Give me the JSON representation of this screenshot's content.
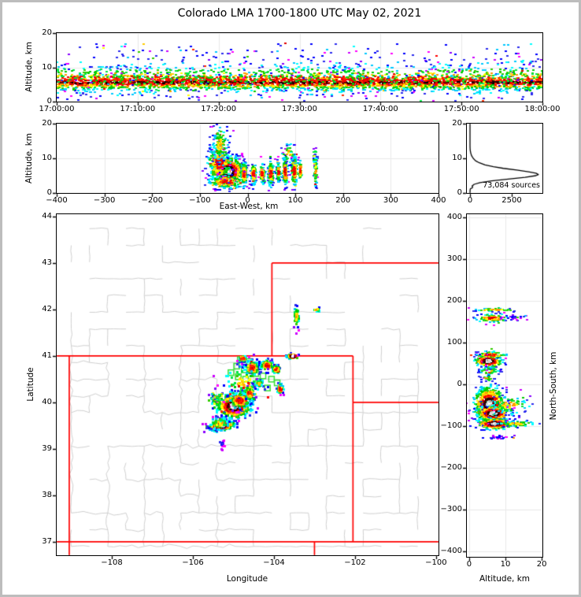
{
  "title": "Colorado LMA 1700-1800 UTC May 02, 2021",
  "style": {
    "figure_border_color": "#bdbdbd",
    "frame_color": "#000000",
    "grid_color": "#e9e9e9",
    "county_line_color": "#cfcfcf",
    "state_border_color": "#ff0000",
    "station_marker_color": "#35e035",
    "histogram_line_color": "#000000",
    "density_tiers": [
      [
        "#ffffff",
        "#d4d4d4",
        "#9e9e9e"
      ],
      [
        "#000000",
        "#2b0000",
        "#660000"
      ],
      [
        "#ff0000",
        "#e00000",
        "#ff2a00"
      ],
      [
        "#ff9900",
        "#ffcc00",
        "#ffff00"
      ],
      [
        "#00cc00",
        "#00e644",
        "#33cc00"
      ],
      [
        "#00ffff",
        "#00c8ff"
      ],
      [
        "#0000ff",
        "#2b2bee"
      ],
      [
        "#8800ff",
        "#cc00ff",
        "#ff00ff"
      ]
    ]
  },
  "chart_data": [
    {
      "id": "time",
      "type": "scatter-density",
      "description": "Time-height lightning source scatter",
      "xlabel": "",
      "ylabel": "Altitude, km",
      "xlim": [
        0,
        3600
      ],
      "ylim": [
        0,
        20
      ],
      "xticks": [
        {
          "v": 0,
          "label": "17:00:00"
        },
        {
          "v": 600,
          "label": "17:10:00"
        },
        {
          "v": 1200,
          "label": "17:20:00"
        },
        {
          "v": 1800,
          "label": "17:30:00"
        },
        {
          "v": 2400,
          "label": "17:40:00"
        },
        {
          "v": 3000,
          "label": "17:50:00"
        },
        {
          "v": 3600,
          "label": "18:00:00"
        }
      ],
      "yticks": [
        {
          "v": 0,
          "label": "0"
        },
        {
          "v": 10,
          "label": "10"
        },
        {
          "v": 20,
          "label": "20"
        }
      ],
      "grid": true,
      "clusters": [
        {
          "band": true,
          "n": 2400,
          "x0": 0,
          "x1": 3600,
          "cy": 5.6,
          "sy": 1.0,
          "kind": "band"
        },
        {
          "band": true,
          "n": 1100,
          "x0": 0,
          "x1": 3600,
          "cy": 6.3,
          "sy": 2.0,
          "kind": "mid"
        },
        {
          "band": true,
          "n": 700,
          "x0": 0,
          "x1": 3600,
          "cy": 6.8,
          "sy": 3.2,
          "kind": "outer"
        },
        {
          "uniform": true,
          "n": 130,
          "x0": 60,
          "x1": 3560,
          "y0": 9,
          "y1": 17,
          "kind": "highblue"
        }
      ]
    },
    {
      "id": "ew",
      "type": "scatter-density",
      "description": "East-West vertical cross section",
      "xlabel": "East-West, km",
      "ylabel": "Altitude, km",
      "xlim": [
        -400,
        400
      ],
      "ylim": [
        0,
        20
      ],
      "xticks": [
        {
          "v": -400,
          "label": "−400"
        },
        {
          "v": -300,
          "label": "−300"
        },
        {
          "v": -200,
          "label": "−200"
        },
        {
          "v": -100,
          "label": "−100"
        },
        {
          "v": 0,
          "label": "0"
        },
        {
          "v": 100,
          "label": "100"
        },
        {
          "v": 200,
          "label": "200"
        },
        {
          "v": 300,
          "label": "300"
        },
        {
          "v": 400,
          "label": "400"
        }
      ],
      "yticks": [
        {
          "v": 0,
          "label": "0"
        },
        {
          "v": 10,
          "label": "10"
        },
        {
          "v": 20,
          "label": "20"
        }
      ],
      "grid": true,
      "clusters": [
        {
          "n": 800,
          "cx": -42,
          "cy": 6.2,
          "sx": 16,
          "sy": 2.0,
          "kind": "dense"
        },
        {
          "n": 250,
          "cx": -60,
          "cy": 8.5,
          "sx": 12,
          "sy": 2.5,
          "kind": "mid"
        },
        {
          "n": 160,
          "cx": -45,
          "cy": 3.2,
          "sx": 18,
          "sy": 0.9,
          "kind": "mid"
        },
        {
          "n": 140,
          "cx": -58,
          "cy": 14.0,
          "sx": 9,
          "sy": 2.8,
          "kind": "sparse"
        },
        {
          "n": 120,
          "cx": -8,
          "cy": 5.5,
          "sx": 3.0,
          "sy": 1.8,
          "kind": "colmid"
        },
        {
          "n": 100,
          "cx": 12,
          "cy": 5.5,
          "sx": 2.5,
          "sy": 1.6,
          "kind": "colmid"
        },
        {
          "n": 90,
          "cx": 30,
          "cy": 5.5,
          "sx": 2.5,
          "sy": 1.5,
          "kind": "colmid"
        },
        {
          "n": 130,
          "cx": 48,
          "cy": 5.5,
          "sx": 3.0,
          "sy": 1.8,
          "kind": "colmid"
        },
        {
          "n": 70,
          "cx": 64,
          "cy": 6.0,
          "sx": 2.0,
          "sy": 1.5,
          "kind": "colmid"
        },
        {
          "n": 120,
          "cx": 78,
          "cy": 6.0,
          "sx": 2.5,
          "sy": 2.0,
          "kind": "colmid"
        },
        {
          "n": 140,
          "cx": 97,
          "cy": 6.5,
          "sx": 3.0,
          "sy": 2.2,
          "kind": "colmid"
        },
        {
          "n": 50,
          "cx": 110,
          "cy": 6.5,
          "sx": 1.5,
          "sy": 1.5,
          "kind": "colmid"
        },
        {
          "n": 70,
          "cx": 142,
          "cy": 6.5,
          "sx": 2.0,
          "sy": 2.4,
          "kind": "sparse"
        },
        {
          "n": 40,
          "cx": 85,
          "cy": 11.5,
          "sx": 8.0,
          "sy": 1.5,
          "kind": "sparse"
        },
        {
          "n": 15,
          "cx": 140,
          "cy": 11.0,
          "sx": 3.0,
          "sy": 1.5,
          "kind": "sparse"
        }
      ]
    },
    {
      "id": "hist",
      "type": "line",
      "description": "Altitude histogram of source counts",
      "xlabel": "",
      "ylabel": "",
      "annotation": "73,084 sources",
      "xlim": [
        -190,
        4340
      ],
      "ylim": [
        0,
        20
      ],
      "xticks": [
        {
          "v": 0,
          "label": "0"
        },
        {
          "v": 2500,
          "label": "2500"
        }
      ],
      "yticks": [
        {
          "v": 0,
          "label": "0"
        },
        {
          "v": 10,
          "label": "10"
        },
        {
          "v": 20,
          "label": "20"
        }
      ],
      "grid": false,
      "points": [
        [
          0,
          0
        ],
        [
          5,
          0.8
        ],
        [
          20,
          1.2
        ],
        [
          140,
          1.5
        ],
        [
          160,
          1.8
        ],
        [
          120,
          2.0
        ],
        [
          250,
          2.5
        ],
        [
          600,
          3.0
        ],
        [
          1300,
          3.5
        ],
        [
          2300,
          4.0
        ],
        [
          3300,
          4.5
        ],
        [
          3950,
          5.0
        ],
        [
          4100,
          5.3
        ],
        [
          3950,
          5.7
        ],
        [
          3500,
          6.1
        ],
        [
          2800,
          6.6
        ],
        [
          2000,
          7.1
        ],
        [
          1400,
          7.6
        ],
        [
          900,
          8.1
        ],
        [
          560,
          8.7
        ],
        [
          330,
          9.3
        ],
        [
          190,
          10.0
        ],
        [
          100,
          10.7
        ],
        [
          50,
          11.4
        ],
        [
          22,
          12.0
        ],
        [
          8,
          12.6
        ],
        [
          2,
          13.2
        ],
        [
          0,
          13.8
        ],
        [
          0,
          20
        ]
      ]
    },
    {
      "id": "map",
      "type": "map-scatter",
      "description": "Plan view of lightning sources over Colorado",
      "xlabel": "Longitude",
      "ylabel": "Latitude",
      "xlim": [
        -109.36,
        -99.94
      ],
      "ylim": [
        36.71,
        44.05
      ],
      "xticks": [
        {
          "v": -108,
          "label": "−108"
        },
        {
          "v": -106,
          "label": "−106"
        },
        {
          "v": -104,
          "label": "−104"
        },
        {
          "v": -102,
          "label": "−102"
        },
        {
          "v": -100,
          "label": "−100"
        }
      ],
      "yticks": [
        {
          "v": 37,
          "label": "37"
        },
        {
          "v": 38,
          "label": "38"
        },
        {
          "v": 39,
          "label": "39"
        },
        {
          "v": 40,
          "label": "40"
        },
        {
          "v": 41,
          "label": "41"
        },
        {
          "v": 42,
          "label": "42"
        },
        {
          "v": 43,
          "label": "43"
        },
        {
          "v": 44,
          "label": "44"
        }
      ],
      "grid": false,
      "state_borders": [
        [
          [
            -109.36,
            41
          ],
          [
            -102.05,
            41
          ]
        ],
        [
          [
            -109.05,
            41
          ],
          [
            -109.05,
            36.71
          ]
        ],
        [
          [
            -109.36,
            37
          ],
          [
            -99.94,
            37
          ]
        ],
        [
          [
            -102.05,
            41
          ],
          [
            -102.05,
            37
          ]
        ],
        [
          [
            -104.05,
            43
          ],
          [
            -104.05,
            41
          ]
        ],
        [
          [
            -104.05,
            43
          ],
          [
            -99.94,
            43
          ]
        ],
        [
          [
            -102.05,
            40
          ],
          [
            -99.94,
            40
          ]
        ],
        [
          [
            -103.0,
            37
          ],
          [
            -103.0,
            36.71
          ]
        ]
      ],
      "counties": {
        "seed": 20210502,
        "lon_step": 0.45,
        "lat_step": 0.36,
        "keep_coarse": 0.72,
        "keep_fine": 0.32
      },
      "stations": [
        [
          -105.06,
          40.64
        ],
        [
          -104.92,
          40.78
        ],
        [
          -104.88,
          40.55
        ],
        [
          -104.73,
          40.7
        ],
        [
          -104.7,
          40.5
        ],
        [
          -104.61,
          40.88
        ],
        [
          -104.52,
          40.8
        ],
        [
          -104.45,
          40.62
        ],
        [
          -104.38,
          40.45
        ],
        [
          -104.55,
          40.37
        ],
        [
          -104.75,
          40.26
        ],
        [
          -104.27,
          40.57
        ],
        [
          -104.06,
          40.5
        ],
        [
          -103.92,
          40.42
        ],
        [
          -104.16,
          40.31
        ],
        [
          -104.83,
          40.92
        ]
      ],
      "clusters": [
        {
          "n": 550,
          "cx": -105.0,
          "cy": 39.93,
          "sx": 0.2,
          "sy": 0.12,
          "kind": "dense"
        },
        {
          "n": 150,
          "cx": -104.85,
          "cy": 40.05,
          "sx": 0.12,
          "sy": 0.08,
          "kind": "mid"
        },
        {
          "n": 70,
          "cx": -105.42,
          "cy": 40.1,
          "sx": 0.07,
          "sy": 0.06,
          "kind": "green"
        },
        {
          "n": 220,
          "cx": -105.3,
          "cy": 39.5,
          "sx": 0.16,
          "sy": 0.05,
          "rot": 20,
          "kind": "dense"
        },
        {
          "n": 60,
          "cx": -105.35,
          "cy": 39.55,
          "sx": 0.12,
          "sy": 0.08,
          "kind": "sparse"
        },
        {
          "n": 110,
          "cx": -104.55,
          "cy": 40.75,
          "sx": 0.09,
          "sy": 0.08,
          "kind": "colmid"
        },
        {
          "n": 90,
          "cx": -104.18,
          "cy": 40.8,
          "sx": 0.08,
          "sy": 0.06,
          "kind": "colmid"
        },
        {
          "n": 45,
          "cx": -103.95,
          "cy": 40.72,
          "sx": 0.05,
          "sy": 0.04,
          "kind": "mid"
        },
        {
          "n": 80,
          "cx": -104.6,
          "cy": 40.22,
          "sx": 0.06,
          "sy": 0.09,
          "kind": "colmid"
        },
        {
          "n": 35,
          "cx": -104.37,
          "cy": 40.42,
          "sx": 0.05,
          "sy": 0.04,
          "kind": "sparse"
        },
        {
          "n": 40,
          "cx": -103.85,
          "cy": 40.3,
          "sx": 0.04,
          "sy": 0.06,
          "kind": "colmid"
        },
        {
          "n": 55,
          "cx": -103.55,
          "cy": 41.0,
          "sx": 0.07,
          "sy": 0.025,
          "kind": "dense"
        },
        {
          "n": 30,
          "cx": -104.78,
          "cy": 40.95,
          "sx": 0.05,
          "sy": 0.03,
          "kind": "mid"
        },
        {
          "n": 70,
          "cx": -104.75,
          "cy": 40.45,
          "sx": 0.25,
          "sy": 0.18,
          "kind": "sparse"
        },
        {
          "n": 40,
          "cx": -103.45,
          "cy": 41.85,
          "sx": 0.04,
          "sy": 0.12,
          "kind": "sparse"
        },
        {
          "n": 10,
          "cx": -102.95,
          "cy": 42.0,
          "sx": 0.05,
          "sy": 0.02,
          "kind": "sparse"
        },
        {
          "n": 12,
          "cx": -105.28,
          "cy": 39.1,
          "sx": 0.03,
          "sy": 0.05,
          "kind": "purple"
        }
      ]
    },
    {
      "id": "ns",
      "type": "scatter-density",
      "description": "North-South vertical cross section",
      "xlabel": "Altitude, km",
      "ylabel": "North-South, km",
      "xlim": [
        -0.65,
        20.2
      ],
      "ylim": [
        -413.5,
        407
      ],
      "xticks": [
        {
          "v": 0,
          "label": "0"
        },
        {
          "v": 10,
          "label": "10"
        },
        {
          "v": 20,
          "label": "20"
        }
      ],
      "yticks": [
        {
          "v": 400,
          "label": "400"
        },
        {
          "v": 300,
          "label": "300"
        },
        {
          "v": 200,
          "label": "200"
        },
        {
          "v": 100,
          "label": "100"
        },
        {
          "v": 0,
          "label": "0"
        },
        {
          "v": -100,
          "label": "−100"
        },
        {
          "v": -200,
          "label": "−200"
        },
        {
          "v": -300,
          "label": "−300"
        },
        {
          "v": -400,
          "label": "−400"
        }
      ],
      "grid": true,
      "clusters": [
        {
          "n": 700,
          "cx": 5.5,
          "cy": -48,
          "sx": 2.0,
          "sy": 20,
          "kind": "dense"
        },
        {
          "n": 300,
          "cx": 6.5,
          "cy": -70,
          "sx": 2.2,
          "sy": 9,
          "kind": "dense"
        },
        {
          "n": 280,
          "cx": 7.0,
          "cy": -95,
          "sx": 2.4,
          "sy": 6,
          "kind": "dense"
        },
        {
          "n": 70,
          "cx": 13,
          "cy": -95,
          "sx": 3.0,
          "sy": 3.5,
          "kind": "sparse"
        },
        {
          "n": 80,
          "cx": 11,
          "cy": -50,
          "sx": 3.0,
          "sy": 12,
          "kind": "sparse"
        },
        {
          "n": 260,
          "cx": 5.2,
          "cy": 55,
          "sx": 1.8,
          "sy": 7,
          "kind": "dense"
        },
        {
          "n": 90,
          "cx": 6.0,
          "cy": 70,
          "sx": 2.0,
          "sy": 4,
          "kind": "mid"
        },
        {
          "n": 50,
          "cx": 5.5,
          "cy": 32,
          "sx": 1.5,
          "sy": 5,
          "kind": "sparse"
        },
        {
          "n": 20,
          "cx": 5.0,
          "cy": 15,
          "sx": 1.0,
          "sy": 3,
          "kind": "sparse"
        },
        {
          "n": 110,
          "cx": 6.0,
          "cy": 158,
          "sx": 2.2,
          "sy": 5,
          "kind": "colmid"
        },
        {
          "n": 45,
          "cx": 7.0,
          "cy": 178,
          "sx": 3.5,
          "sy": 2,
          "kind": "sparse"
        },
        {
          "n": 20,
          "cx": 12,
          "cy": 160,
          "sx": 2.5,
          "sy": 3,
          "kind": "purple"
        },
        {
          "n": 22,
          "cx": 8.5,
          "cy": -128,
          "sx": 2.0,
          "sy": 2.5,
          "kind": "purple"
        }
      ]
    }
  ]
}
